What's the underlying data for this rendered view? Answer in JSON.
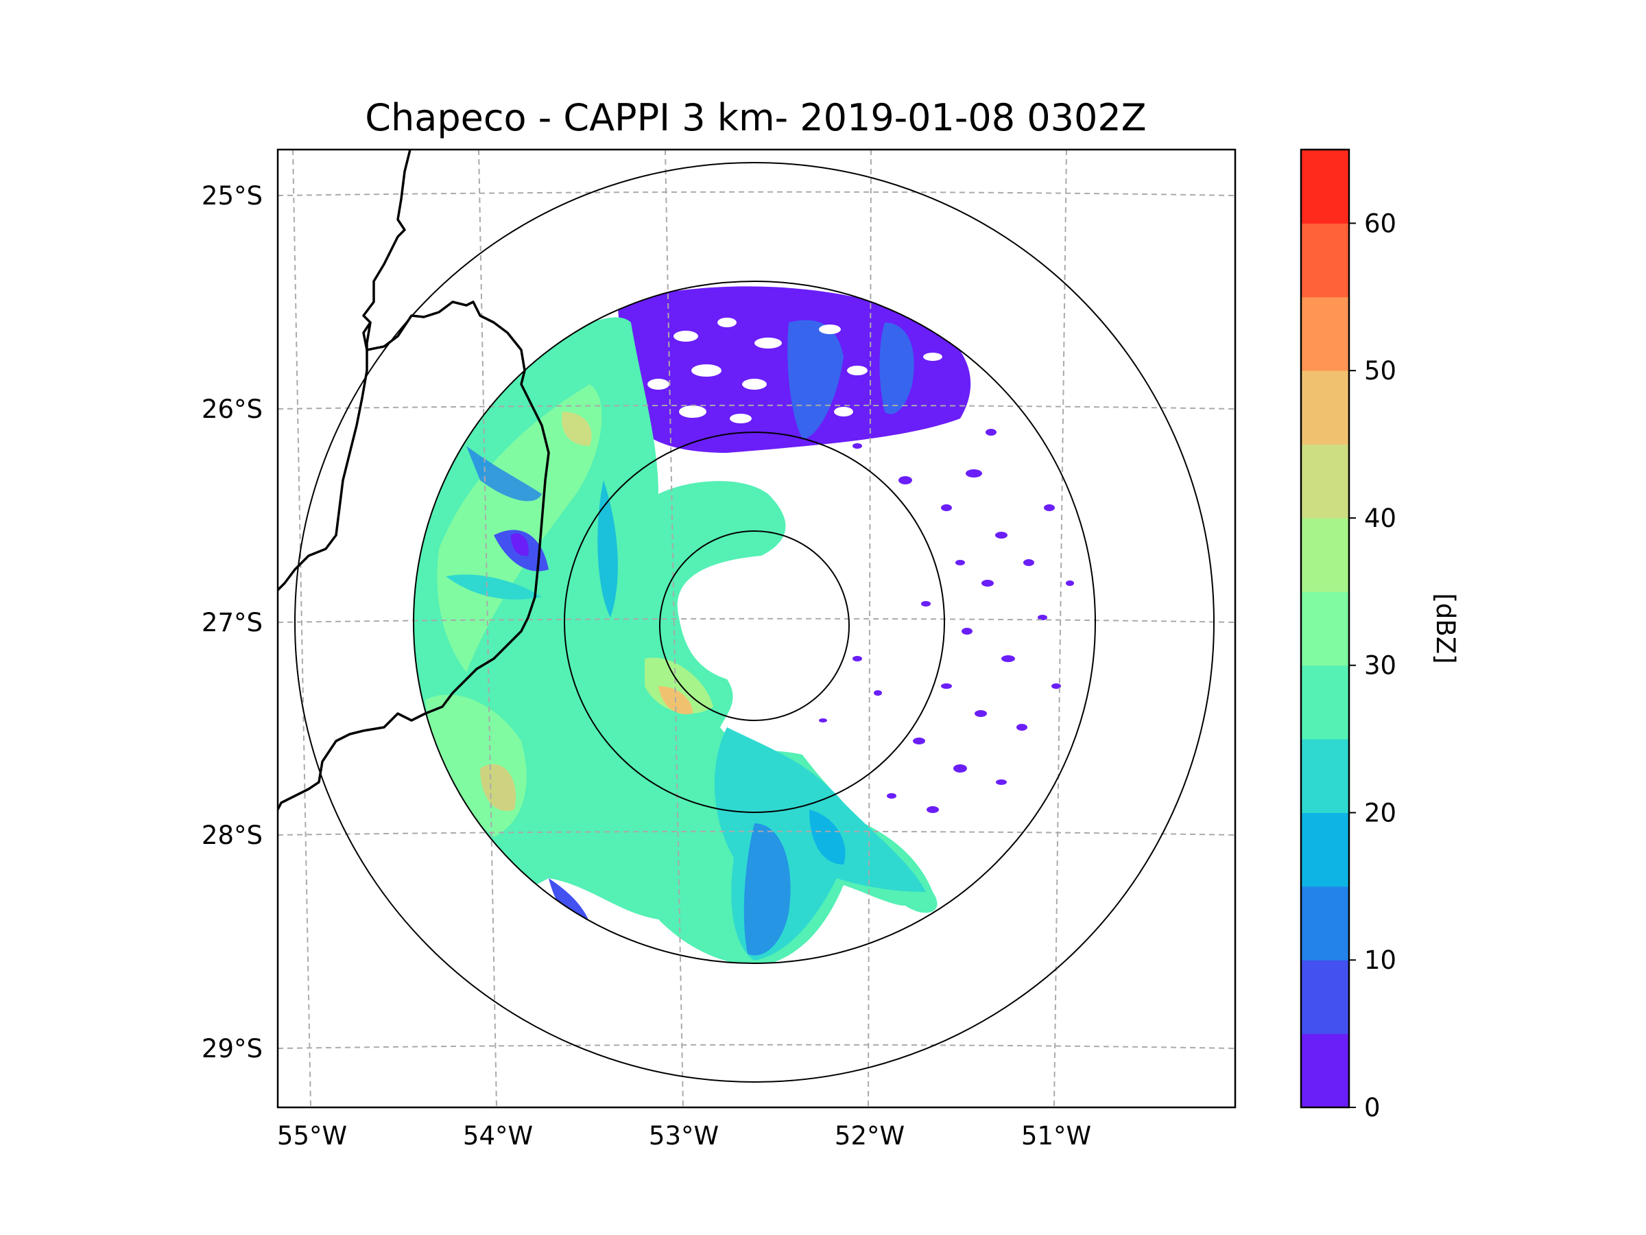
{
  "title": "Chapeco - CAPPI 3 km- 2019-01-08 0302Z",
  "map": {
    "lat_ticks": [
      "25°S",
      "26°S",
      "27°S",
      "28°S",
      "29°S"
    ],
    "lon_ticks": [
      "55°W",
      "54°W",
      "53°W",
      "52°W",
      "51°W"
    ],
    "gridlines": true,
    "range_rings": 4
  },
  "colorbar": {
    "label": "[dBZ]",
    "tick_labels": [
      "0",
      "10",
      "20",
      "30",
      "40",
      "50",
      "60"
    ],
    "levels": [
      0,
      5,
      10,
      15,
      20,
      25,
      30,
      35,
      40,
      45,
      50,
      55,
      60,
      65
    ],
    "colors": [
      "#6a1ef8",
      "#4251f0",
      "#2383e9",
      "#0db4e4",
      "#2fd9d0",
      "#54f0b4",
      "#80fba2",
      "#a7f48b",
      "#cdde82",
      "#f0c270",
      "#ff9654",
      "#ff6138",
      "#ff2a1b"
    ]
  },
  "colors": {
    "coast": "#000000",
    "grid": "#aaaaaa",
    "ring": "#000000"
  }
}
